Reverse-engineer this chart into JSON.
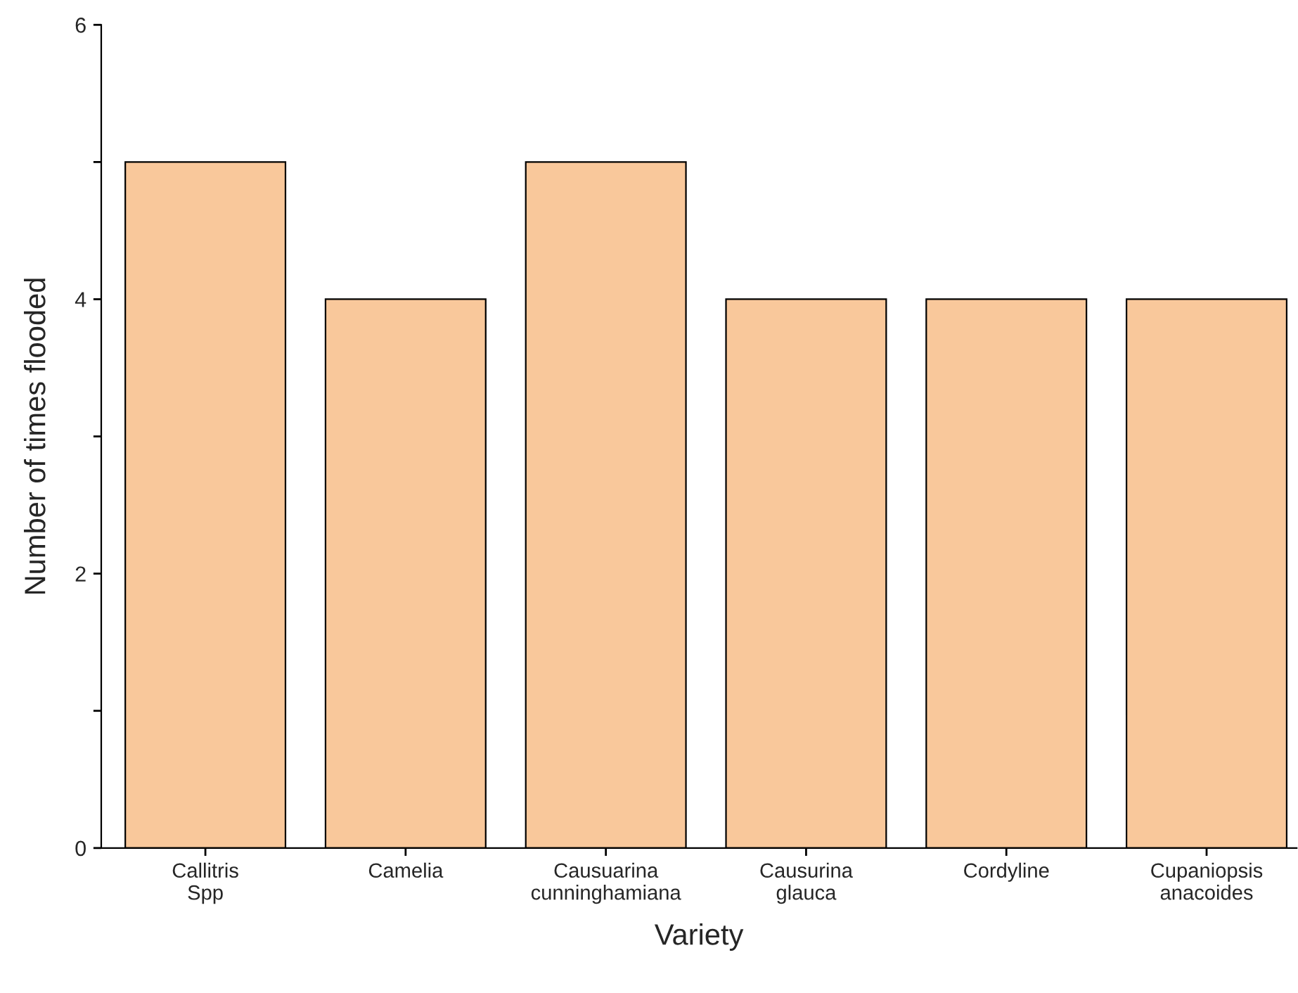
{
  "chart_data": {
    "type": "bar",
    "xlabel": "Variety",
    "ylabel": "Number of times flooded",
    "categories": [
      "Callitris\nSpp",
      "Camelia",
      "Causuarina\ncunninghamiana",
      "Causurina\nglauca",
      "Cordyline",
      "Cupaniopsis\nanacoides"
    ],
    "values": [
      5,
      4,
      5,
      4,
      4,
      4
    ],
    "color": "#f9c89b",
    "ylim": [
      0,
      6
    ],
    "yticks": [
      0,
      {
        "value": 1,
        "label": null
      },
      2,
      {
        "value": 3,
        "label": null
      },
      4,
      {
        "value": 5,
        "label": null
      },
      6
    ],
    "grid": false,
    "legend": false
  }
}
